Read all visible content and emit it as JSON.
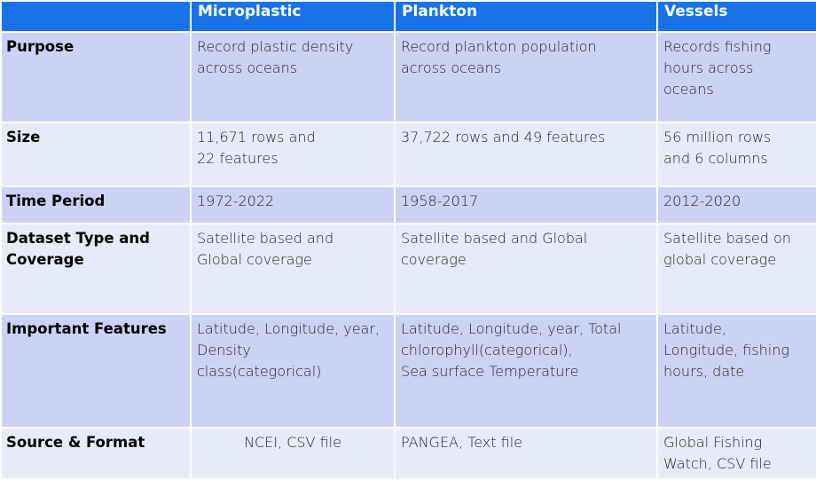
{
  "colors": {
    "header_bg": "#1873e8",
    "row_dark": "#cbd3f5",
    "row_light": "#e7eaf9"
  },
  "table": {
    "headers": [
      "",
      "Microplastic",
      "Plankton",
      "Vessels"
    ],
    "rows": [
      {
        "label": "Purpose",
        "cells": [
          "Record plastic density\nacross oceans",
          "Record plankton population\nacross oceans",
          "Records fishing\nhours across\noceans"
        ]
      },
      {
        "label": "Size",
        "cells": [
          "11,671 rows and\n22 features",
          "37,722 rows and 49 features",
          "56 million rows\nand 6 columns"
        ]
      },
      {
        "label": "Time Period",
        "cells": [
          "1972-2022",
          "1958-2017",
          "2012-2020"
        ]
      },
      {
        "label": "Dataset Type and\nCoverage",
        "cells": [
          "Satellite based and\nGlobal coverage",
          "Satellite based and Global\ncoverage",
          "Satellite  based on\nglobal coverage"
        ]
      },
      {
        "label": "Important Features",
        "cells": [
          "Latitude, Longitude, year,\nDensity\nclass(categorical)",
          "Latitude, Longitude, year, Total\nchlorophyll(categorical),\nSea surface Temperature",
          "Latitude,\nLongitude, fishing\nhours, date"
        ]
      },
      {
        "label": "Source & Format",
        "cells": [
          "NCEI, CSV file",
          "PANGEA, Text file",
          "Global Fishing\nWatch, CSV file"
        ]
      }
    ]
  }
}
